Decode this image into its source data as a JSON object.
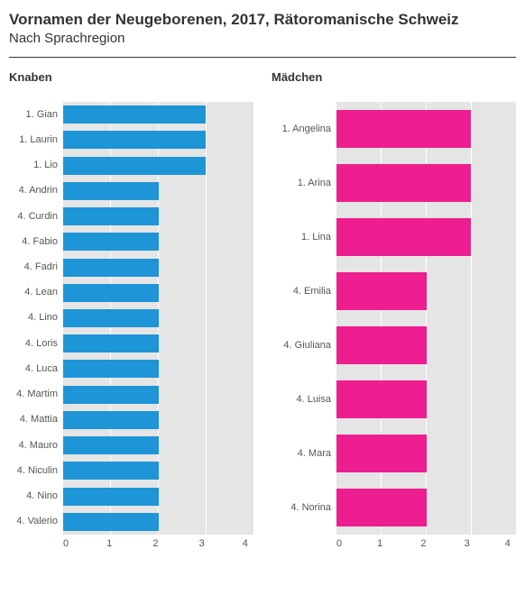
{
  "title": "Vornamen der Neugeborenen, 2017, Rätoromanische Schweiz",
  "subtitle": "Nach Sprachregion",
  "x_max": 4,
  "x_ticks": [
    0,
    1,
    2,
    3,
    4
  ],
  "plot_height_boys": 480,
  "plot_height_girls": 480,
  "bar_height_boys": 20,
  "bar_height_girls": 42,
  "background_color": "#e5e5e5",
  "grid_color": "#ffffff",
  "label_fontsize": 11,
  "title_fontsize": 17,
  "charts": [
    {
      "title": "Knaben",
      "color": "#1e95d6",
      "label_width": 60,
      "data": [
        {
          "rank": 1,
          "name": "Gian",
          "value": 3
        },
        {
          "rank": 1,
          "name": "Laurin",
          "value": 3
        },
        {
          "rank": 1,
          "name": "Lio",
          "value": 3
        },
        {
          "rank": 4,
          "name": "Andrin",
          "value": 2
        },
        {
          "rank": 4,
          "name": "Curdin",
          "value": 2
        },
        {
          "rank": 4,
          "name": "Fabio",
          "value": 2
        },
        {
          "rank": 4,
          "name": "Fadri",
          "value": 2
        },
        {
          "rank": 4,
          "name": "Lean",
          "value": 2
        },
        {
          "rank": 4,
          "name": "Lino",
          "value": 2
        },
        {
          "rank": 4,
          "name": "Loris",
          "value": 2
        },
        {
          "rank": 4,
          "name": "Luca",
          "value": 2
        },
        {
          "rank": 4,
          "name": "Martim",
          "value": 2
        },
        {
          "rank": 4,
          "name": "Mattia",
          "value": 2
        },
        {
          "rank": 4,
          "name": "Mauro",
          "value": 2
        },
        {
          "rank": 4,
          "name": "Niculin",
          "value": 2
        },
        {
          "rank": 4,
          "name": "Nino",
          "value": 2
        },
        {
          "rank": 4,
          "name": "Valerio",
          "value": 2
        }
      ]
    },
    {
      "title": "Mädchen",
      "color": "#ed1e8f",
      "label_width": 72,
      "data": [
        {
          "rank": 1,
          "name": "Angelina",
          "value": 3
        },
        {
          "rank": 1,
          "name": "Arina",
          "value": 3
        },
        {
          "rank": 1,
          "name": "Lina",
          "value": 3
        },
        {
          "rank": 4,
          "name": "Emilia",
          "value": 2
        },
        {
          "rank": 4,
          "name": "Giuliana",
          "value": 2
        },
        {
          "rank": 4,
          "name": "Luisa",
          "value": 2
        },
        {
          "rank": 4,
          "name": "Mara",
          "value": 2
        },
        {
          "rank": 4,
          "name": "Norina",
          "value": 2
        }
      ]
    }
  ]
}
